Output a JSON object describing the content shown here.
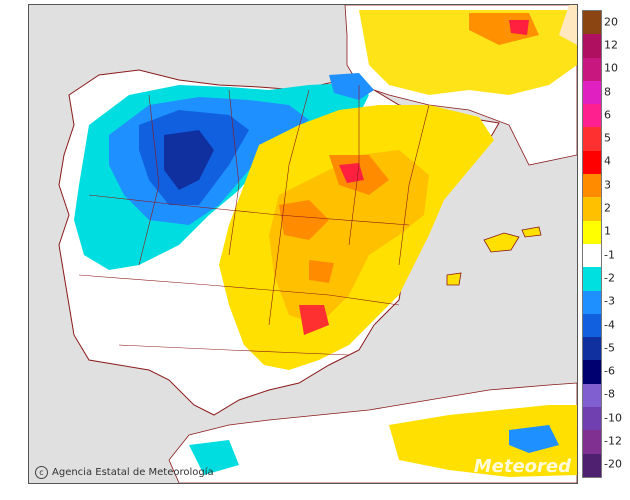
{
  "map": {
    "credit": "Agencia Estatal de Meteorología",
    "credit_icon": "copyright-circle-icon",
    "watermark": "Meteored",
    "colors": {
      "sea": "#e0e0e0",
      "land_neutral": "#ffffff",
      "border": "#8b1a1a"
    }
  },
  "legend": {
    "labels": [
      "20",
      "12",
      "10",
      "8",
      "6",
      "5",
      "4",
      "3",
      "2",
      "1",
      "-1",
      "-2",
      "-3",
      "-4",
      "-5",
      "-6",
      "-8",
      "-10",
      "-12",
      "-20"
    ],
    "colors": [
      "#8b4513",
      "#b01060",
      "#c81880",
      "#e020c0",
      "#ff2090",
      "#ff3030",
      "#ff0000",
      "#ff8c00",
      "#ffc000",
      "#ffff00",
      "#ffffff",
      "#00e0e0",
      "#1e90ff",
      "#1060e0",
      "#1030a0",
      "#000070",
      "#8060d0",
      "#7040b0",
      "#803090",
      "#502070"
    ]
  }
}
